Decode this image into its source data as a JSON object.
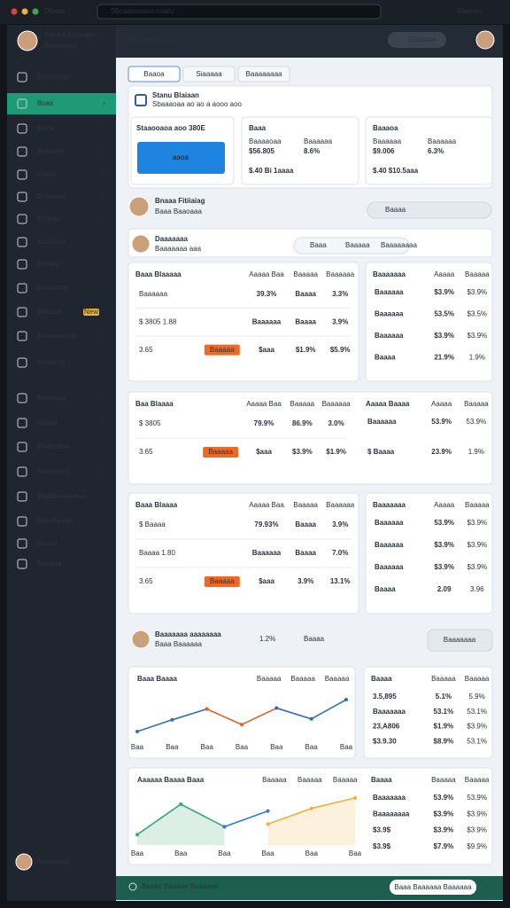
{
  "browser": {
    "tab": "Dbaas",
    "url": "Sbcaaosoauu.coaru",
    "account": "Sbacaw"
  },
  "sidebar": {
    "user": "Sinuke Ekompin",
    "role": "Boaaaaaa",
    "items": [
      "Beplaams",
      "Boas",
      "Baoa",
      "Bosaoos",
      "Daoia",
      "Bhaopaa",
      "Dbaoia",
      "Bauoaaa",
      "Beaaia",
      "Bhauktaa",
      "Baadaa",
      "Bauaaaoaoa",
      "Banpiing",
      "Beaaaaa",
      "Baaaa",
      "Bnaaaaaa",
      "Baaaaaaa",
      "Baaapaaaaaaa",
      "Bae Baaiea",
      "Baaaa",
      "Baaaaa"
    ],
    "active": 1,
    "badge": "New",
    "footer": "Baaaaaaa"
  },
  "header": {
    "title": "Bnonal Ekongini",
    "search": "Seaeoaa"
  },
  "tabs": [
    "Baaoa",
    "Siaaaaa",
    "Baaaaaaaa"
  ],
  "summary": {
    "title": "Stanu Blaiaan",
    "subtitle": "Sbaaaoaa ao ao a aooo aoo",
    "lead": {
      "label": "Staaooaoa aoo 380E",
      "button": "aaoa"
    },
    "cards": [
      {
        "label": "Baaa",
        "stats": [
          {
            "name": "Baaaaoaa",
            "value": "$56.805",
            "color": "#2e8b3e"
          },
          {
            "name": "Baaaaaa",
            "value": "8.6%",
            "color": "#e0452b"
          }
        ],
        "foot": "$.40 Bi 1aaaa"
      },
      {
        "label": "Baaaoa",
        "stats": [
          {
            "name": "Baaaaaa",
            "value": "$9.006",
            "color": "#e0452b"
          },
          {
            "name": "Baaaaaa",
            "value": "6.3%",
            "color": "#e8a21b"
          }
        ],
        "foot": "$.40 $10.5aaa"
      }
    ]
  },
  "profile": {
    "name": "Bnaaa Fitiiaiag",
    "sub": "Baaa Baaoaaa",
    "select": "Baaaa"
  },
  "section": {
    "name": "Daaaaaaa",
    "sub": "Baaaaaaa aaa",
    "tags": [
      "Baaa",
      "Baaaaa",
      "Baaaaaaaa"
    ]
  },
  "blocks": [
    {
      "left": {
        "title": "Baaa Blaaaaa",
        "headers": [
          "Aaaaa Baa",
          "Baaaaa",
          "Baaaaaa"
        ],
        "rows": [
          {
            "cells": [
              "Baaaaaa",
              "39.3%",
              "Baaaa",
              "3.3%"
            ],
            "tones": [
              "#3a9d4a",
              "#555e6b"
            ]
          },
          {
            "cells": [
              "$ 3805 1.88",
              "Baaaaaa",
              "Baaaa",
              "3.9%"
            ],
            "tones": [
              "#2f7fd8",
              "#e0452b"
            ]
          },
          {
            "cells": [
              "3.65",
              "$aaa",
              "$1.9%",
              "$5.9%"
            ],
            "tones": [
              "#e0452b",
              "#3a9d4a"
            ],
            "action": "Baaaaa"
          }
        ]
      },
      "right": {
        "title": "Baaaaaaa",
        "headers": [
          "Aaaaa",
          "Baaaaa"
        ],
        "rows": [
          {
            "cells": [
              "Baaaaaa",
              "$3.9%",
              "$3.9%"
            ],
            "tones": [
              "#e0452b",
              "#555e6b"
            ]
          },
          {
            "cells": [
              "Baaaaaa",
              "53.5%",
              "$3.5%"
            ],
            "tones": [
              "#555e6b",
              "#555e6b"
            ]
          },
          {
            "cells": [
              "Baaaaaa",
              "$3.9%",
              "$3.9%"
            ],
            "tones": [
              "#e0452b",
              "#555e6b"
            ]
          },
          {
            "cells": [
              "Baaaa",
              "21.9%",
              "1.9%"
            ],
            "tones": [
              "#e0452b",
              "#3a9d4a"
            ]
          }
        ]
      }
    },
    {
      "left": {
        "title": "Baa Blaaaa",
        "headers": [
          "Aaaaa Baa",
          "Baaaaa",
          "Baaaaaa"
        ],
        "rows": [
          {
            "cells": [
              "$ 3805",
              "79.9%",
              "86.9%",
              "3.0%"
            ],
            "tones": [
              "#2f7fd8",
              "#555e6b"
            ]
          },
          {
            "cells": [
              "3.65",
              "$aaa",
              "$3.9%",
              "$1.9%"
            ],
            "tones": [
              "#e0452b",
              "#3a9d4a"
            ],
            "action": "Baaaaa"
          }
        ]
      },
      "right": {
        "title": "Aaaaa Baaaa",
        "headers": [
          "Aaaaa",
          "Baaaaa"
        ],
        "rows": [
          {
            "cells": [
              "Baaaaaa",
              "53.9%",
              "53.9%"
            ],
            "tones": [
              "#555e6b",
              "#555e6b"
            ]
          },
          {
            "cells": [
              "$ Baaaa",
              "23.9%",
              "1.9%"
            ],
            "tones": [
              "#e0452b",
              "#3a9d4a"
            ]
          }
        ]
      }
    },
    {
      "left": {
        "title": "Baaa Blaaaa",
        "headers": [
          "Aaaaa Baa",
          "Baaaaa",
          "Baaaaaa"
        ],
        "rows": [
          {
            "cells": [
              "$ Baaaa",
              "79.93%",
              "Baaaa",
              "3.9%"
            ],
            "tones": [
              "#e0452b",
              "#e0452b"
            ]
          },
          {
            "cells": [
              "Baaaa 1.80",
              "Baaaaaa",
              "Baaaa",
              "7.0%"
            ],
            "tones": [
              "#2f7fd8",
              "#3a9d4a"
            ]
          },
          {
            "cells": [
              "3.65",
              "$aaa",
              "3.9%",
              "13.1%"
            ],
            "tones": [
              "#e0452b",
              "#3a9d4a"
            ],
            "action": "Baaaaa"
          }
        ]
      },
      "right": {
        "title": "Baaaaaaa",
        "headers": [
          "Aaaaa",
          "Baaaaa"
        ],
        "rows": [
          {
            "cells": [
              "Baaaaaa",
              "53.9%",
              "$3.9%"
            ],
            "tones": [
              "#555e6b",
              "#555e6b"
            ]
          },
          {
            "cells": [
              "Baaaaaa",
              "$3.9%",
              "$3.9%"
            ],
            "tones": [
              "#555e6b",
              "#555e6b"
            ]
          },
          {
            "cells": [
              "Baaaaaa",
              "$3.9%",
              "$3.9%"
            ],
            "tones": [
              "#555e6b",
              "#555e6b"
            ]
          },
          {
            "cells": [
              "Baaaa",
              "2.09",
              "3.96"
            ],
            "tones": [
              "#e0452b",
              "#e0452b"
            ]
          }
        ]
      }
    }
  ],
  "section2": {
    "name": "Baaaaaaa aaaaaaaa",
    "sub": "Baaa Baaaaaa",
    "tags": [
      "1.2%",
      "Baaaa"
    ],
    "button": "Baaaaaaa"
  },
  "charts": [
    {
      "title": "Baaa Baaaa",
      "headers": [
        "Baaaaa",
        "Baaaaa",
        "Baaaaa"
      ],
      "categories": [
        "Baa",
        "Baa",
        "Baa",
        "Baa",
        "Baa",
        "Baa",
        "Baa"
      ],
      "ylim": [
        0,
        100
      ],
      "series": [
        {
          "color": "#2f6fb8",
          "values": [
            15,
            40,
            63,
            null,
            null,
            null,
            null
          ]
        },
        {
          "color": "#e0632b",
          "values": [
            null,
            null,
            63,
            30,
            65,
            null,
            null
          ]
        },
        {
          "color": "#2f6fb8",
          "values": [
            null,
            null,
            null,
            null,
            65,
            42,
            83
          ]
        }
      ],
      "table": {
        "title": "Baaaa",
        "headers": [
          "Baaaaa",
          "Baaaaa"
        ],
        "rows": [
          {
            "cells": [
              "3.5,895",
              "5.1%",
              "5.9%"
            ],
            "tones": [
              "#3a9d4a",
              "#555e6b"
            ]
          },
          {
            "cells": [
              "Baaaaaaa",
              "53.1%",
              "53.1%"
            ],
            "tones": [
              "#555e6b",
              "#555e6b"
            ]
          },
          {
            "cells": [
              "23,A806",
              "$1.9%",
              "$3.9%"
            ],
            "tones": [
              "#e0452b",
              "#3a9d4a"
            ]
          },
          {
            "cells": [
              "$3.9.30",
              "$8.9%",
              "53.1%"
            ],
            "tones": [
              "#e8a21b",
              "#555e6b"
            ]
          }
        ]
      }
    },
    {
      "title": "Aaaaaa Baaaa Baaa",
      "headers": [
        "Baaaaa",
        "Baaaaa",
        "Baaaaa"
      ],
      "categories": [
        "Baa",
        "Baa",
        "Baa",
        "Baa",
        "Baa",
        "Baa"
      ],
      "ylim": [
        0,
        100
      ],
      "series": [
        {
          "color": "#3aa67a",
          "values": [
            20,
            78,
            35,
            null,
            null,
            null
          ],
          "area": true
        },
        {
          "color": "#2f7fd8",
          "values": [
            null,
            null,
            35,
            65,
            null,
            null
          ]
        },
        {
          "color": "#e8b23b",
          "values": [
            null,
            null,
            null,
            40,
            70,
            90
          ],
          "area": true
        }
      ],
      "table": {
        "title": "Baaaa",
        "headers": [
          "Baaaaa",
          "Baaaaa"
        ],
        "rows": [
          {
            "cells": [
              "Baaaaaaa",
              "53.9%",
              "53.9%"
            ],
            "tones": [
              "#3a9d4a",
              "#555e6b"
            ]
          },
          {
            "cells": [
              "Baaaaaaaa",
              "$3.9%",
              "$3.9%"
            ],
            "tones": [
              "#3a9d4a",
              "#3a9d4a"
            ]
          },
          {
            "cells": [
              "$3.9$",
              "$3.9%",
              "$3.9%"
            ],
            "tones": [
              "#e8a21b",
              "#3a9d4a"
            ]
          },
          {
            "cells": [
              "$3.9$",
              "$7.9%",
              "$9.9%"
            ],
            "tones": [
              "#e0452b",
              "#3a9d4a"
            ]
          }
        ]
      }
    }
  ],
  "bottom": {
    "status": "Baaay Baaaaa Baaaaaa",
    "button": "Baaa Baaaaaa Baaaaaa"
  }
}
